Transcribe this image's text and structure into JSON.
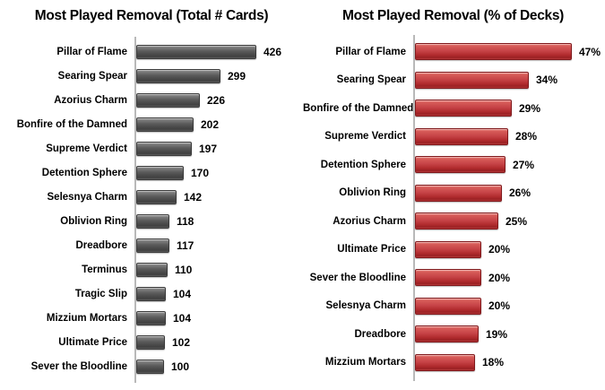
{
  "page": {
    "background_color": "#ffffff",
    "text_color": "#000000",
    "axis_color": "#b9b9b9"
  },
  "chart_data": [
    {
      "type": "bar",
      "orientation": "horizontal",
      "title": "Most Played Removal (Total # Cards)",
      "categories": [
        "Pillar of Flame",
        "Searing Spear",
        "Azorius Charm",
        "Bonfire of the Damned",
        "Supreme Verdict",
        "Detention Sphere",
        "Selesnya Charm",
        "Oblivion Ring",
        "Dreadbore",
        "Terminus",
        "Tragic Slip",
        "Mizzium Mortars",
        "Ultimate Price",
        "Sever the Bloodline"
      ],
      "values": [
        426,
        299,
        226,
        202,
        197,
        170,
        142,
        118,
        117,
        110,
        104,
        104,
        102,
        100
      ],
      "value_suffix": "",
      "bar_color": "#595959",
      "xlim": [
        0,
        450
      ],
      "gridlines": false,
      "legend": false,
      "value_label_position": "outside-end"
    },
    {
      "type": "bar",
      "orientation": "horizontal",
      "title": "Most Played Removal (% of Decks)",
      "categories": [
        "Pillar of Flame",
        "Searing Spear",
        "Bonfire of the Damned",
        "Supreme Verdict",
        "Detention Sphere",
        "Oblivion Ring",
        "Azorius Charm",
        "Ultimate Price",
        "Sever the Bloodline",
        "Selesnya Charm",
        "Dreadbore",
        "Mizzium Mortars"
      ],
      "values": [
        47,
        34,
        29,
        28,
        27,
        26,
        25,
        20,
        20,
        20,
        19,
        18
      ],
      "value_suffix": "%",
      "bar_color": "#c0393c",
      "xlim": [
        0,
        50
      ],
      "gridlines": false,
      "legend": false,
      "value_label_position": "outside-end"
    }
  ]
}
